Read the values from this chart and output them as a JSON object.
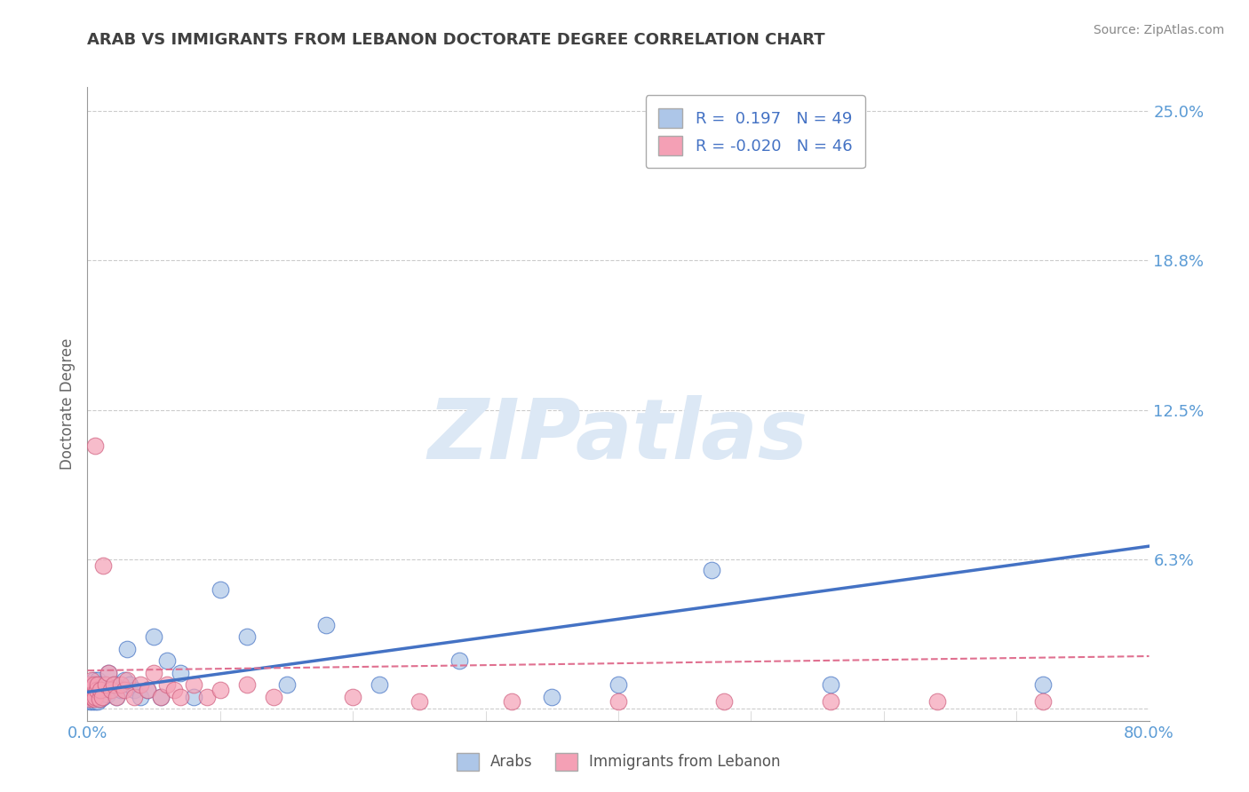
{
  "title": "ARAB VS IMMIGRANTS FROM LEBANON DOCTORATE DEGREE CORRELATION CHART",
  "source_text": "Source: ZipAtlas.com",
  "ylabel": "Doctorate Degree",
  "watermark": "ZIPatlas",
  "xlim": [
    0.0,
    0.8
  ],
  "ylim": [
    -0.005,
    0.26
  ],
  "yticks": [
    0.0,
    0.0625,
    0.125,
    0.1875,
    0.25
  ],
  "ytick_labels": [
    "",
    "6.3%",
    "12.5%",
    "18.8%",
    "25.0%"
  ],
  "xticks": [
    0.0,
    0.1,
    0.2,
    0.3,
    0.4,
    0.5,
    0.6,
    0.7,
    0.8
  ],
  "xtick_labels": [
    "0.0%",
    "",
    "",
    "",
    "",
    "",
    "",
    "",
    "80.0%"
  ],
  "legend_R_arab": " 0.197",
  "legend_N_arab": "49",
  "legend_R_leb": "-0.020",
  "legend_N_leb": "46",
  "arab_color": "#adc6e8",
  "leb_color": "#f4a0b5",
  "arab_line_color": "#4472c4",
  "leb_line_color": "#e07090",
  "title_color": "#404040",
  "tick_color": "#5b9bd5",
  "grid_color": "#cccccc",
  "watermark_color": "#dce8f5",
  "arab_trend_start_y": 0.007,
  "arab_trend_end_y": 0.068,
  "leb_trend_start_y": 0.016,
  "leb_trend_end_y": 0.022,
  "arab_scatter_x": [
    0.001,
    0.002,
    0.002,
    0.003,
    0.003,
    0.004,
    0.004,
    0.005,
    0.005,
    0.006,
    0.006,
    0.007,
    0.007,
    0.008,
    0.008,
    0.009,
    0.01,
    0.01,
    0.011,
    0.012,
    0.013,
    0.015,
    0.016,
    0.018,
    0.02,
    0.022,
    0.025,
    0.028,
    0.03,
    0.032,
    0.035,
    0.04,
    0.045,
    0.05,
    0.055,
    0.06,
    0.07,
    0.08,
    0.1,
    0.12,
    0.15,
    0.18,
    0.22,
    0.28,
    0.35,
    0.4,
    0.47,
    0.56,
    0.72
  ],
  "arab_scatter_y": [
    0.005,
    0.008,
    0.003,
    0.01,
    0.005,
    0.008,
    0.003,
    0.012,
    0.004,
    0.008,
    0.003,
    0.01,
    0.005,
    0.012,
    0.003,
    0.007,
    0.01,
    0.004,
    0.008,
    0.005,
    0.01,
    0.006,
    0.015,
    0.008,
    0.01,
    0.005,
    0.008,
    0.012,
    0.025,
    0.01,
    0.008,
    0.005,
    0.008,
    0.03,
    0.005,
    0.02,
    0.015,
    0.005,
    0.05,
    0.03,
    0.01,
    0.035,
    0.01,
    0.02,
    0.005,
    0.01,
    0.058,
    0.01,
    0.01
  ],
  "leb_scatter_x": [
    0.001,
    0.001,
    0.002,
    0.002,
    0.003,
    0.003,
    0.004,
    0.005,
    0.005,
    0.006,
    0.006,
    0.007,
    0.008,
    0.009,
    0.01,
    0.011,
    0.012,
    0.014,
    0.016,
    0.018,
    0.02,
    0.022,
    0.025,
    0.028,
    0.03,
    0.035,
    0.04,
    0.045,
    0.05,
    0.055,
    0.06,
    0.065,
    0.07,
    0.08,
    0.09,
    0.1,
    0.12,
    0.14,
    0.2,
    0.25,
    0.32,
    0.4,
    0.48,
    0.56,
    0.64,
    0.72
  ],
  "leb_scatter_y": [
    0.01,
    0.005,
    0.008,
    0.004,
    0.005,
    0.012,
    0.005,
    0.01,
    0.004,
    0.11,
    0.005,
    0.008,
    0.01,
    0.004,
    0.008,
    0.005,
    0.06,
    0.01,
    0.015,
    0.008,
    0.01,
    0.005,
    0.01,
    0.008,
    0.012,
    0.005,
    0.01,
    0.008,
    0.015,
    0.005,
    0.01,
    0.008,
    0.005,
    0.01,
    0.005,
    0.008,
    0.01,
    0.005,
    0.005,
    0.003,
    0.003,
    0.003,
    0.003,
    0.003,
    0.003,
    0.003
  ]
}
